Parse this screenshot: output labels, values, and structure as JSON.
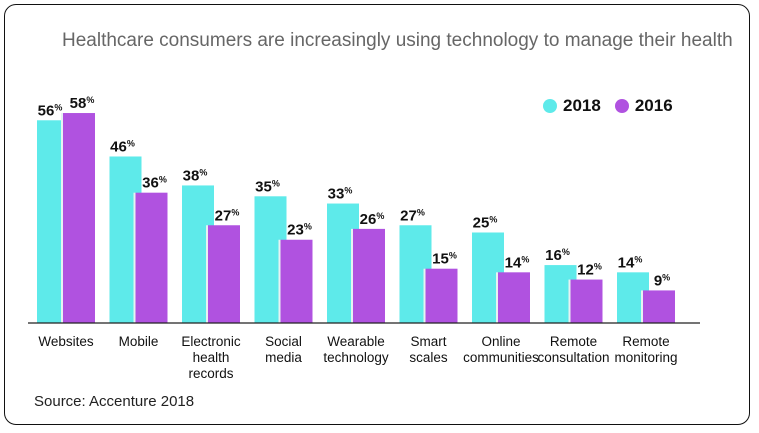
{
  "title": "Healthcare consumers are increasingly using technology to manage their health",
  "source": "Source: Accenture 2018",
  "colors": {
    "series2018": "#5eeaea",
    "series2016": "#b052e0",
    "axis": "#222222",
    "shadow": "#e6f2f2"
  },
  "chart_data": {
    "type": "bar",
    "title": "Healthcare consumers are increasingly using technology to manage their health",
    "categories": [
      [
        "Websites"
      ],
      [
        "Mobile"
      ],
      [
        "Electronic",
        "health",
        "records"
      ],
      [
        "Social",
        "media"
      ],
      [
        "Wearable",
        "technology"
      ],
      [
        "Smart",
        "scales"
      ],
      [
        "Online",
        "communities"
      ],
      [
        "Remote",
        "consultation"
      ],
      [
        "Remote",
        "monitoring"
      ]
    ],
    "series": [
      {
        "name": "2018",
        "values": [
          56,
          46,
          38,
          35,
          33,
          27,
          25,
          16,
          14
        ]
      },
      {
        "name": "2016",
        "values": [
          58,
          36,
          27,
          23,
          26,
          15,
          14,
          12,
          9
        ]
      }
    ],
    "value_suffix": "%",
    "legend_position": "top-right",
    "ylim": [
      0,
      60
    ],
    "grid": false
  }
}
